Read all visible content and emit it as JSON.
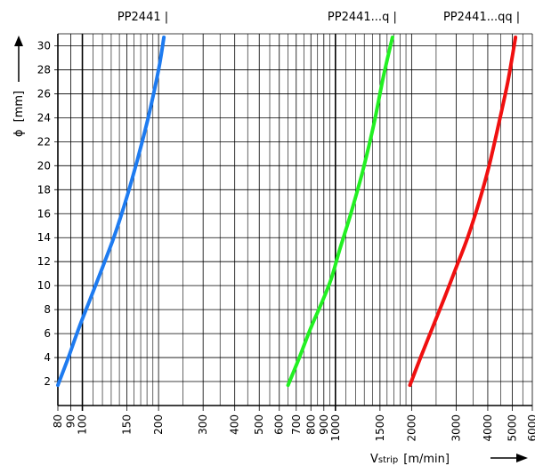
{
  "chart_data": {
    "type": "line",
    "x_scale": "log",
    "xlim": [
      80,
      6000
    ],
    "ylim": [
      0,
      31
    ],
    "x_major_ticks": [
      80,
      90,
      100,
      150,
      200,
      300,
      400,
      500,
      600,
      700,
      800,
      900,
      1000,
      1500,
      2000,
      3000,
      4000,
      5000,
      6000
    ],
    "x_minor_ticks": [
      110,
      120,
      130,
      140,
      160,
      170,
      180,
      190,
      250,
      350,
      450,
      550,
      650,
      750,
      850,
      950,
      1100,
      1200,
      1300,
      1400,
      1600,
      1700,
      1800,
      1900,
      2500,
      3500,
      4500,
      5500
    ],
    "y_ticks": [
      2,
      4,
      6,
      8,
      10,
      12,
      14,
      16,
      18,
      20,
      22,
      24,
      26,
      28,
      30
    ],
    "xlabel_main": "V",
    "xlabel_sub": "strip",
    "xlabel_unit": "[m/min]",
    "ylabel_symbol": "ϕ",
    "ylabel_unit": "[mm]",
    "grid": true,
    "series": [
      {
        "name": "PP2441 |",
        "color": "#1E7BF0",
        "x": [
          80,
          88,
          97,
          108,
          120,
          133,
          148,
          165,
          182,
          200,
          210
        ],
        "y": [
          1.7,
          4,
          6.5,
          9,
          11.5,
          14,
          17,
          20.5,
          24,
          28,
          30.7
        ]
      },
      {
        "name": "PP2441...q |",
        "color": "#22F022",
        "x": [
          650,
          720,
          800,
          880,
          960,
          1040,
          1150,
          1280,
          1420,
          1550,
          1680
        ],
        "y": [
          1.7,
          4,
          6.5,
          8.5,
          10.5,
          13,
          16,
          19.5,
          23.5,
          27.5,
          30.7
        ]
      },
      {
        "name": "PP2441...qq |",
        "color": "#F01010",
        "x": [
          1970,
          2170,
          2420,
          2700,
          3000,
          3330,
          3700,
          4050,
          4420,
          4800,
          5150
        ],
        "y": [
          1.7,
          4,
          6.5,
          9,
          11.5,
          14,
          17,
          20,
          23.5,
          27,
          30.7
        ]
      }
    ]
  }
}
